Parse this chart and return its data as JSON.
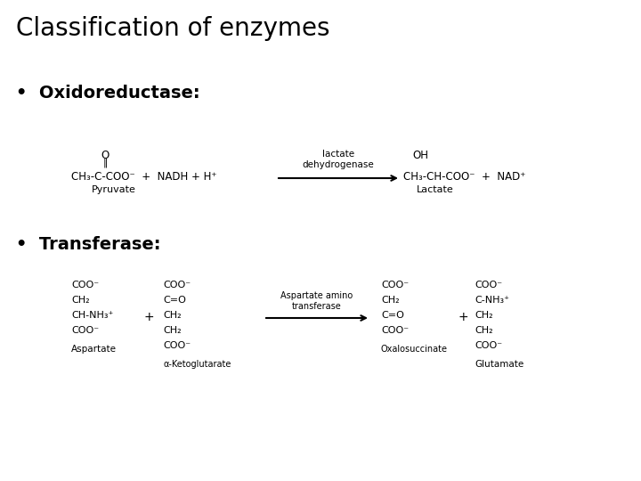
{
  "title": "Classification of enzymes",
  "title_fontsize": 20,
  "background_color": "#ffffff",
  "text_color": "#000000",
  "bullet1_label": "•  Oxidoreductase:",
  "bullet2_label": "•  Transferase:",
  "bullet_fontsize": 14,
  "rxn1_fs": 8.5,
  "rxn2_fs": 8.0
}
